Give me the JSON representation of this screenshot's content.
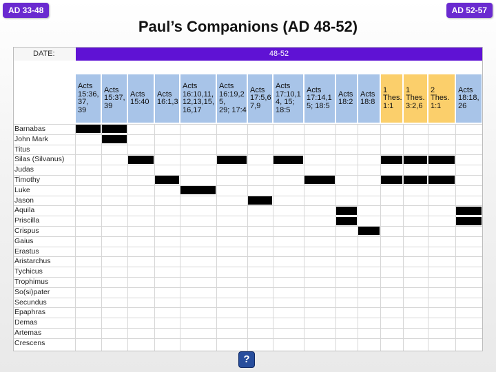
{
  "nav": {
    "prev_label": "AD 33-48",
    "next_label": "AD 52-57"
  },
  "title": "Paul’s Companions (AD 48-52)",
  "table": {
    "date_label": "DATE:",
    "range_label": "48-52",
    "colors": {
      "range": "#5f12d4",
      "ref_blue": "#a8c4e8",
      "ref_orange": "#fbcf6b",
      "mark": "#000000"
    },
    "references": [
      {
        "text": "Acts\n15:36,\n37,\n39",
        "color": "blue"
      },
      {
        "text": "Acts\n15:37,\n39",
        "color": "blue"
      },
      {
        "text": "Acts\n15:40",
        "color": "blue"
      },
      {
        "text": "Acts\n16:1,3",
        "color": "blue"
      },
      {
        "text": "Acts\n16:10,11,\n12,13,15,\n16,17",
        "color": "blue"
      },
      {
        "text": "Acts\n16:19,2\n5,\n29; 17:4",
        "color": "blue"
      },
      {
        "text": "Acts\n17:5,6\n7,9",
        "color": "blue"
      },
      {
        "text": "Acts\n17:10,1\n4, 15;\n18:5",
        "color": "blue"
      },
      {
        "text": "Acts\n17:14,1\n5; 18:5",
        "color": "blue"
      },
      {
        "text": "Acts\n18:2",
        "color": "blue"
      },
      {
        "text": "Acts\n18:8",
        "color": "blue"
      },
      {
        "text": "1\nThes.\n1:1",
        "color": "orange"
      },
      {
        "text": "1\nThes.\n3:2,6",
        "color": "orange"
      },
      {
        "text": "2\nThes.\n1:1",
        "color": "orange"
      },
      {
        "text": "Acts\n18:18,\n26",
        "color": "blue"
      }
    ],
    "companions": [
      {
        "name": "Barnabas",
        "present": [
          0,
          1
        ]
      },
      {
        "name": "John Mark",
        "present": [
          1
        ]
      },
      {
        "name": "Titus",
        "present": []
      },
      {
        "name": "Silas (Silvanus)",
        "present": [
          2,
          5,
          7,
          11,
          12,
          13
        ]
      },
      {
        "name": "Judas",
        "present": []
      },
      {
        "name": "Timothy",
        "present": [
          3,
          8,
          11,
          12,
          13
        ]
      },
      {
        "name": "Luke",
        "present": [
          4
        ]
      },
      {
        "name": "Jason",
        "present": [
          6
        ]
      },
      {
        "name": "Aquila",
        "present": [
          9,
          14
        ]
      },
      {
        "name": "Priscilla",
        "present": [
          9,
          14
        ]
      },
      {
        "name": "Crispus",
        "present": [
          10
        ]
      },
      {
        "name": "Gaius",
        "present": []
      },
      {
        "name": "Erastus",
        "present": []
      },
      {
        "name": "Aristarchus",
        "present": []
      },
      {
        "name": "Tychicus",
        "present": []
      },
      {
        "name": "Trophimus",
        "present": []
      },
      {
        "name": "So(si)pater",
        "present": []
      },
      {
        "name": "Secundus",
        "present": []
      },
      {
        "name": "Epaphras",
        "present": []
      },
      {
        "name": "Demas",
        "present": []
      },
      {
        "name": "Artemas",
        "present": []
      },
      {
        "name": "Crescens",
        "present": []
      }
    ]
  },
  "help_label": "?"
}
